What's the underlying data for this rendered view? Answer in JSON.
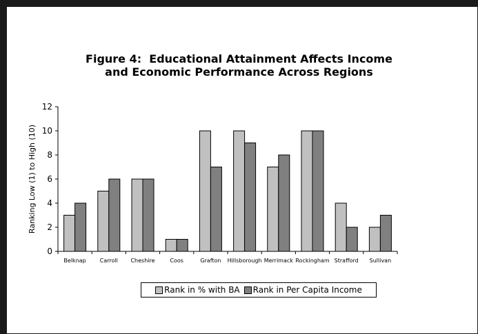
{
  "chart_data": {
    "type": "bar",
    "title": "Figure 4:  Educational Attainment Affects Income",
    "title_line2": "and Economic Performance Across Regions",
    "xlabel": "",
    "ylabel": "Ranking Low (1) to High (10)",
    "ylim": [
      0,
      12
    ],
    "yticks": [
      0,
      2,
      4,
      6,
      8,
      10,
      12
    ],
    "grid": false,
    "legend": "bottom",
    "categories": [
      "Belknap",
      "Carroll",
      "Cheshire",
      "Coos",
      "Grafton",
      "Hillsborough",
      "Merrimack",
      "Rockingham",
      "Strafford",
      "Sullivan"
    ],
    "series": [
      {
        "name": "Rank in % with BA",
        "color": "#c0c0c0",
        "values": [
          3,
          5,
          6,
          1,
          10,
          10,
          7,
          10,
          4,
          2
        ]
      },
      {
        "name": "Rank in Per Capita Income",
        "color": "#808080",
        "values": [
          4,
          6,
          6,
          1,
          7,
          9,
          8,
          10,
          2,
          3
        ]
      }
    ]
  }
}
